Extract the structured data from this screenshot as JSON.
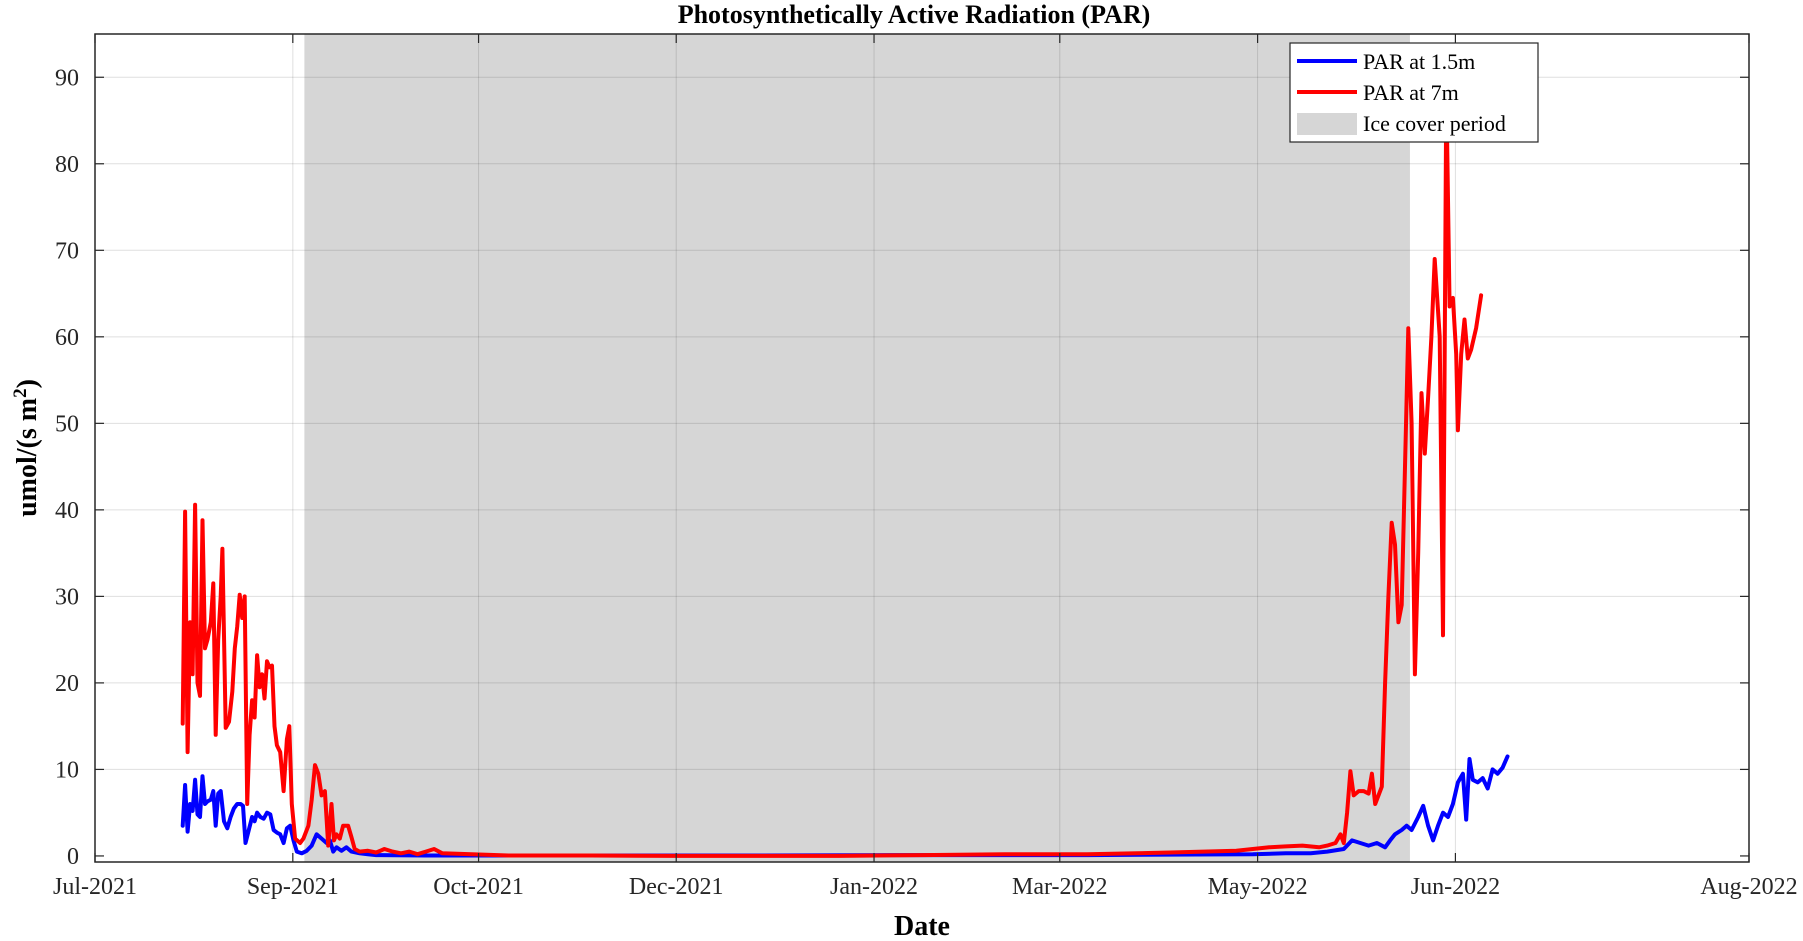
{
  "chart_data": {
    "type": "line",
    "title": "Photosynthetically Active Radiation (PAR)",
    "xlabel": "Date",
    "ylabel": "umol/(s m",
    "ylabel_superscript": "2",
    "ylabel_close": ")",
    "x_ticks": [
      "Jul-2021",
      "Sep-2021",
      "Oct-2021",
      "Dec-2021",
      "Jan-2022",
      "Mar-2022",
      "May-2022",
      "Jun-2022",
      "Aug-2022"
    ],
    "x_ticks_frac": [
      0,
      0.1196,
      0.2319,
      0.3514,
      0.471,
      0.5833,
      0.7029,
      0.8225,
      1
    ],
    "y_ticks": [
      "0",
      "10",
      "20",
      "30",
      "40",
      "50",
      "60",
      "70",
      "80",
      "90"
    ],
    "ylim": [
      -0.7,
      95
    ],
    "grid": true,
    "legend_position": "top-right",
    "ice_cover": {
      "label": "Ice cover period",
      "start_frac": 0.1266,
      "end_frac": 0.795,
      "color": "#d6d6d6"
    },
    "series": [
      {
        "name": "PAR at 1.5m",
        "color": "#0000ff",
        "points": [
          [
            0.053,
            3.5
          ],
          [
            0.0545,
            8.2
          ],
          [
            0.056,
            2.8
          ],
          [
            0.0575,
            6.0
          ],
          [
            0.059,
            5.2
          ],
          [
            0.0605,
            8.8
          ],
          [
            0.062,
            4.8
          ],
          [
            0.0635,
            4.5
          ],
          [
            0.065,
            9.2
          ],
          [
            0.0665,
            6.0
          ],
          [
            0.068,
            6.3
          ],
          [
            0.07,
            6.5
          ],
          [
            0.0715,
            7.5
          ],
          [
            0.073,
            3.5
          ],
          [
            0.0745,
            7.2
          ],
          [
            0.076,
            7.5
          ],
          [
            0.078,
            4.0
          ],
          [
            0.08,
            3.2
          ],
          [
            0.082,
            4.5
          ],
          [
            0.084,
            5.5
          ],
          [
            0.086,
            6.0
          ],
          [
            0.088,
            6.0
          ],
          [
            0.0895,
            5.8
          ],
          [
            0.091,
            1.5
          ],
          [
            0.093,
            3.0
          ],
          [
            0.095,
            4.5
          ],
          [
            0.0965,
            4.0
          ],
          [
            0.098,
            5.0
          ],
          [
            0.1,
            4.5
          ],
          [
            0.102,
            4.3
          ],
          [
            0.104,
            5.0
          ],
          [
            0.106,
            4.8
          ],
          [
            0.108,
            3.0
          ],
          [
            0.11,
            2.7
          ],
          [
            0.112,
            2.5
          ],
          [
            0.114,
            1.5
          ],
          [
            0.116,
            3.2
          ],
          [
            0.118,
            3.5
          ],
          [
            0.12,
            1.8
          ],
          [
            0.122,
            0.5
          ],
          [
            0.125,
            0.3
          ],
          [
            0.128,
            0.6
          ],
          [
            0.131,
            1.2
          ],
          [
            0.134,
            2.5
          ],
          [
            0.137,
            2.0
          ],
          [
            0.14,
            1.5
          ],
          [
            0.142,
            1.8
          ],
          [
            0.144,
            0.5
          ],
          [
            0.146,
            1.0
          ],
          [
            0.149,
            0.6
          ],
          [
            0.152,
            1.0
          ],
          [
            0.155,
            0.5
          ],
          [
            0.16,
            0.3
          ],
          [
            0.165,
            0.2
          ],
          [
            0.17,
            0.1
          ],
          [
            0.2,
            0.05
          ],
          [
            0.3,
            0.05
          ],
          [
            0.4,
            0.05
          ],
          [
            0.5,
            0.1
          ],
          [
            0.6,
            0.1
          ],
          [
            0.65,
            0.15
          ],
          [
            0.7,
            0.2
          ],
          [
            0.72,
            0.3
          ],
          [
            0.735,
            0.3
          ],
          [
            0.745,
            0.5
          ],
          [
            0.755,
            0.8
          ],
          [
            0.76,
            1.8
          ],
          [
            0.765,
            1.5
          ],
          [
            0.77,
            1.2
          ],
          [
            0.775,
            1.5
          ],
          [
            0.78,
            1.0
          ],
          [
            0.783,
            1.8
          ],
          [
            0.786,
            2.5
          ],
          [
            0.79,
            3.0
          ],
          [
            0.793,
            3.5
          ],
          [
            0.796,
            3.0
          ],
          [
            0.8,
            4.5
          ],
          [
            0.803,
            5.8
          ],
          [
            0.806,
            3.5
          ],
          [
            0.809,
            1.8
          ],
          [
            0.812,
            3.5
          ],
          [
            0.815,
            5.0
          ],
          [
            0.818,
            4.5
          ],
          [
            0.821,
            6.0
          ],
          [
            0.824,
            8.5
          ],
          [
            0.827,
            9.5
          ],
          [
            0.829,
            4.2
          ],
          [
            0.831,
            11.2
          ],
          [
            0.833,
            8.8
          ],
          [
            0.836,
            8.5
          ],
          [
            0.839,
            9.0
          ],
          [
            0.842,
            7.8
          ],
          [
            0.845,
            10.0
          ],
          [
            0.848,
            9.5
          ],
          [
            0.851,
            10.2
          ],
          [
            0.854,
            11.5
          ]
        ]
      },
      {
        "name": "PAR at 7m",
        "color": "#ff0000",
        "points": [
          [
            0.053,
            15.3
          ],
          [
            0.0545,
            39.8
          ],
          [
            0.056,
            12.0
          ],
          [
            0.0575,
            27.0
          ],
          [
            0.059,
            21.0
          ],
          [
            0.0605,
            40.6
          ],
          [
            0.062,
            20.0
          ],
          [
            0.0635,
            18.5
          ],
          [
            0.065,
            38.8
          ],
          [
            0.0665,
            24.0
          ],
          [
            0.068,
            25.0
          ],
          [
            0.07,
            27.0
          ],
          [
            0.0715,
            31.5
          ],
          [
            0.073,
            14.0
          ],
          [
            0.0745,
            25.0
          ],
          [
            0.076,
            30.0
          ],
          [
            0.077,
            35.5
          ],
          [
            0.079,
            14.8
          ],
          [
            0.081,
            15.5
          ],
          [
            0.083,
            19.0
          ],
          [
            0.0845,
            24.0
          ],
          [
            0.086,
            26.5
          ],
          [
            0.0875,
            30.2
          ],
          [
            0.089,
            27.5
          ],
          [
            0.0905,
            30.0
          ],
          [
            0.092,
            6.0
          ],
          [
            0.0935,
            14.0
          ],
          [
            0.095,
            18.0
          ],
          [
            0.0965,
            16.0
          ],
          [
            0.098,
            23.2
          ],
          [
            0.0995,
            19.5
          ],
          [
            0.101,
            21.0
          ],
          [
            0.1025,
            18.2
          ],
          [
            0.104,
            22.5
          ],
          [
            0.1055,
            21.8
          ],
          [
            0.107,
            22.0
          ],
          [
            0.1085,
            15.0
          ],
          [
            0.11,
            12.8
          ],
          [
            0.112,
            12.0
          ],
          [
            0.114,
            7.5
          ],
          [
            0.116,
            13.5
          ],
          [
            0.1175,
            15.0
          ],
          [
            0.119,
            6.0
          ],
          [
            0.121,
            2.0
          ],
          [
            0.124,
            1.5
          ],
          [
            0.126,
            2.0
          ],
          [
            0.129,
            3.5
          ],
          [
            0.131,
            6.5
          ],
          [
            0.133,
            10.5
          ],
          [
            0.135,
            9.5
          ],
          [
            0.137,
            7.0
          ],
          [
            0.139,
            7.5
          ],
          [
            0.141,
            1.2
          ],
          [
            0.143,
            6.0
          ],
          [
            0.1445,
            1.8
          ],
          [
            0.146,
            2.5
          ],
          [
            0.148,
            2.0
          ],
          [
            0.15,
            3.5
          ],
          [
            0.153,
            3.5
          ],
          [
            0.155,
            2.2
          ],
          [
            0.157,
            0.8
          ],
          [
            0.16,
            0.5
          ],
          [
            0.165,
            0.6
          ],
          [
            0.17,
            0.4
          ],
          [
            0.175,
            0.8
          ],
          [
            0.18,
            0.5
          ],
          [
            0.185,
            0.3
          ],
          [
            0.19,
            0.5
          ],
          [
            0.195,
            0.2
          ],
          [
            0.2,
            0.5
          ],
          [
            0.205,
            0.8
          ],
          [
            0.21,
            0.3
          ],
          [
            0.25,
            0.05
          ],
          [
            0.3,
            0.05
          ],
          [
            0.35,
            0.0
          ],
          [
            0.4,
            0.0
          ],
          [
            0.45,
            0.0
          ],
          [
            0.5,
            0.1
          ],
          [
            0.55,
            0.2
          ],
          [
            0.6,
            0.2
          ],
          [
            0.63,
            0.3
          ],
          [
            0.65,
            0.4
          ],
          [
            0.67,
            0.5
          ],
          [
            0.69,
            0.6
          ],
          [
            0.7,
            0.8
          ],
          [
            0.71,
            1.0
          ],
          [
            0.72,
            1.1
          ],
          [
            0.73,
            1.2
          ],
          [
            0.74,
            1.0
          ],
          [
            0.745,
            1.2
          ],
          [
            0.75,
            1.5
          ],
          [
            0.753,
            2.5
          ],
          [
            0.755,
            1.5
          ],
          [
            0.757,
            5.0
          ],
          [
            0.759,
            9.8
          ],
          [
            0.761,
            7.0
          ],
          [
            0.764,
            7.5
          ],
          [
            0.767,
            7.5
          ],
          [
            0.77,
            7.2
          ],
          [
            0.772,
            9.5
          ],
          [
            0.774,
            6.0
          ],
          [
            0.776,
            7.0
          ],
          [
            0.778,
            8.0
          ],
          [
            0.78,
            20.0
          ],
          [
            0.782,
            30.0
          ],
          [
            0.784,
            38.5
          ],
          [
            0.786,
            36.0
          ],
          [
            0.788,
            27.0
          ],
          [
            0.79,
            29.0
          ],
          [
            0.792,
            45.0
          ],
          [
            0.794,
            61.0
          ],
          [
            0.796,
            50.0
          ],
          [
            0.798,
            21.0
          ],
          [
            0.8,
            35.0
          ],
          [
            0.802,
            53.5
          ],
          [
            0.804,
            46.5
          ],
          [
            0.806,
            53.0
          ],
          [
            0.808,
            60.0
          ],
          [
            0.81,
            69.0
          ],
          [
            0.813,
            60.0
          ],
          [
            0.815,
            25.5
          ],
          [
            0.817,
            89.0
          ],
          [
            0.819,
            63.5
          ],
          [
            0.821,
            64.5
          ],
          [
            0.823,
            58.0
          ],
          [
            0.824,
            49.2
          ],
          [
            0.826,
            58.0
          ],
          [
            0.828,
            62.0
          ],
          [
            0.83,
            57.5
          ],
          [
            0.832,
            58.5
          ],
          [
            0.835,
            61.0
          ],
          [
            0.838,
            64.8
          ]
        ]
      }
    ]
  }
}
